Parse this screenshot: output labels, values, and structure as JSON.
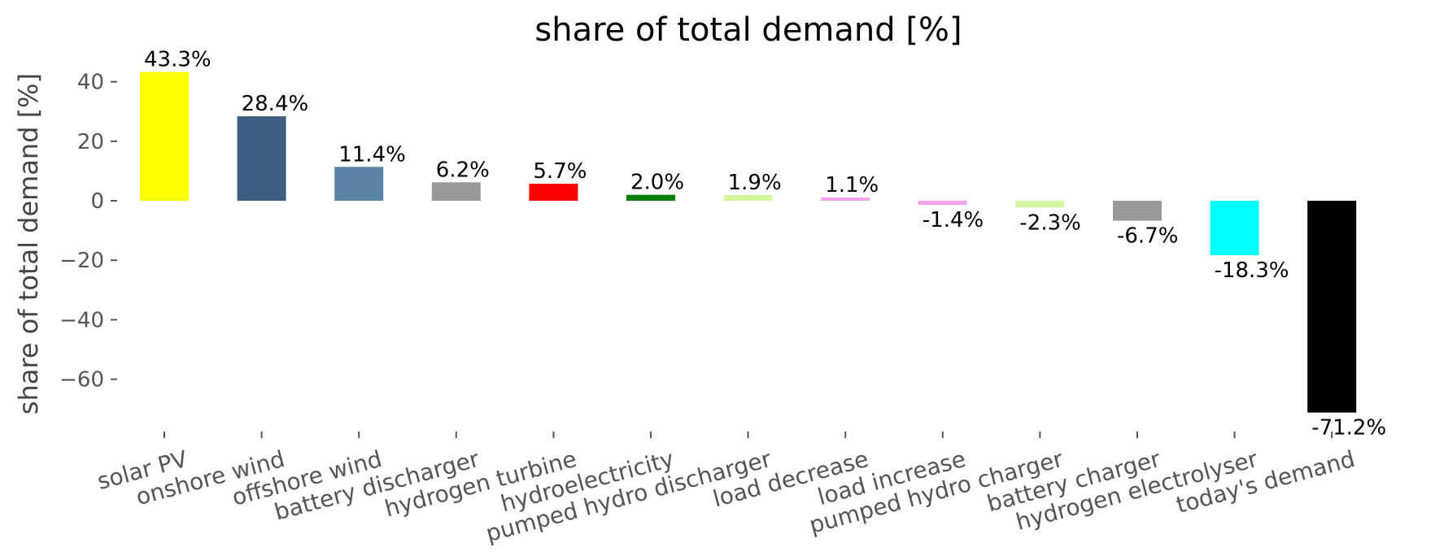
{
  "chart_data": {
    "type": "bar",
    "title": "share of total demand [%]",
    "xlabel": "",
    "ylabel": "share of total demand [%]",
    "ylim": [
      -78,
      46
    ],
    "yticks": [
      40,
      20,
      0,
      -20,
      -40,
      -60
    ],
    "ytick_labels": [
      "40",
      "20",
      "0",
      "−20",
      "−40",
      "−60"
    ],
    "grid": false,
    "legend": "none",
    "categories": [
      "solar PV",
      "onshore wind",
      "offshore wind",
      "battery discharger",
      "hydrogen turbine",
      "hydroelectricity",
      "pumped hydro discharger",
      "load decrease",
      "load increase",
      "pumped hydro charger",
      "battery charger",
      "hydrogen electrolyser",
      "today's demand"
    ],
    "values": [
      43.3,
      28.4,
      11.4,
      6.2,
      5.7,
      2.0,
      1.9,
      1.1,
      -1.4,
      -2.3,
      -6.7,
      -18.3,
      -71.2
    ],
    "value_labels": [
      "43.3%",
      "28.4%",
      "11.4%",
      "6.2%",
      "5.7%",
      "2.0%",
      "1.9%",
      "1.1%",
      "-1.4%",
      "-2.3%",
      "-6.7%",
      "-18.3%",
      "-71.2%"
    ],
    "colors": [
      "#ffff00",
      "#3b5e82",
      "#5b83a6",
      "#999999",
      "#ff0000",
      "#008000",
      "#d5f5a0",
      "#f5a3f0",
      "#f5a3f0",
      "#d5f5a0",
      "#999999",
      "#00ffff",
      "#000000"
    ]
  }
}
